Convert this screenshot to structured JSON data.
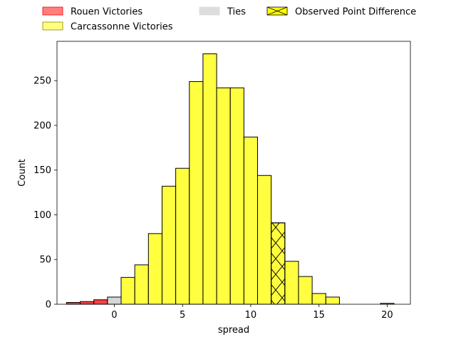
{
  "chart_data": {
    "type": "bar",
    "xlabel": "spread",
    "ylabel": "Count",
    "xlim": [
      -4.2,
      21.7
    ],
    "ylim": [
      0,
      294
    ],
    "xticks": [
      0,
      5,
      10,
      15,
      20
    ],
    "yticks": [
      0,
      50,
      100,
      150,
      200,
      250
    ],
    "bin_width": 1,
    "grid": false,
    "legend_placement": "top, outside plot",
    "series": [
      {
        "name": "Rouen Victories",
        "color": "#ff0000",
        "bins": [
          {
            "x0": -3.5,
            "x1": -2.5,
            "count": 2
          },
          {
            "x0": -2.5,
            "x1": -1.5,
            "count": 3
          },
          {
            "x0": -1.5,
            "x1": -0.5,
            "count": 5
          }
        ]
      },
      {
        "name": "Ties",
        "color": "#c8c8c8",
        "bins": [
          {
            "x0": -0.5,
            "x1": 0.5,
            "count": 8
          }
        ]
      },
      {
        "name": "Carcassonne Victories",
        "color": "#ffff00",
        "bins": [
          {
            "x0": 0.5,
            "x1": 1.5,
            "count": 30
          },
          {
            "x0": 1.5,
            "x1": 2.5,
            "count": 44
          },
          {
            "x0": 2.5,
            "x1": 3.5,
            "count": 79
          },
          {
            "x0": 3.5,
            "x1": 4.5,
            "count": 132
          },
          {
            "x0": 4.5,
            "x1": 5.5,
            "count": 152
          },
          {
            "x0": 5.5,
            "x1": 6.5,
            "count": 249
          },
          {
            "x0": 6.5,
            "x1": 7.5,
            "count": 280
          },
          {
            "x0": 7.5,
            "x1": 8.5,
            "count": 242
          },
          {
            "x0": 8.5,
            "x1": 9.5,
            "count": 242
          },
          {
            "x0": 9.5,
            "x1": 10.5,
            "count": 187
          },
          {
            "x0": 10.5,
            "x1": 11.5,
            "count": 144
          },
          {
            "x0": 12.5,
            "x1": 13.5,
            "count": 48
          },
          {
            "x0": 13.5,
            "x1": 14.5,
            "count": 31
          },
          {
            "x0": 14.5,
            "x1": 15.5,
            "count": 12
          },
          {
            "x0": 15.5,
            "x1": 16.5,
            "count": 8
          },
          {
            "x0": 19.5,
            "x1": 20.5,
            "count": 1
          }
        ]
      },
      {
        "name": "Observed Point Difference",
        "color": "#ffff00",
        "hatch": "x",
        "bins": [
          {
            "x0": 11.5,
            "x1": 12.5,
            "count": 91
          }
        ]
      }
    ],
    "legend": [
      {
        "label": "Rouen Victories",
        "color": "#ff7f7f",
        "edge": "#ff0000"
      },
      {
        "label": "Carcassonne Victories",
        "color": "#ffff7f",
        "edge": "#888800"
      },
      {
        "label": "Ties",
        "color": "#dddddd",
        "edge": "#dddddd"
      },
      {
        "label": "Observed Point Difference",
        "color": "#ffff00",
        "edge": "#000000",
        "hatch": "x"
      }
    ]
  }
}
